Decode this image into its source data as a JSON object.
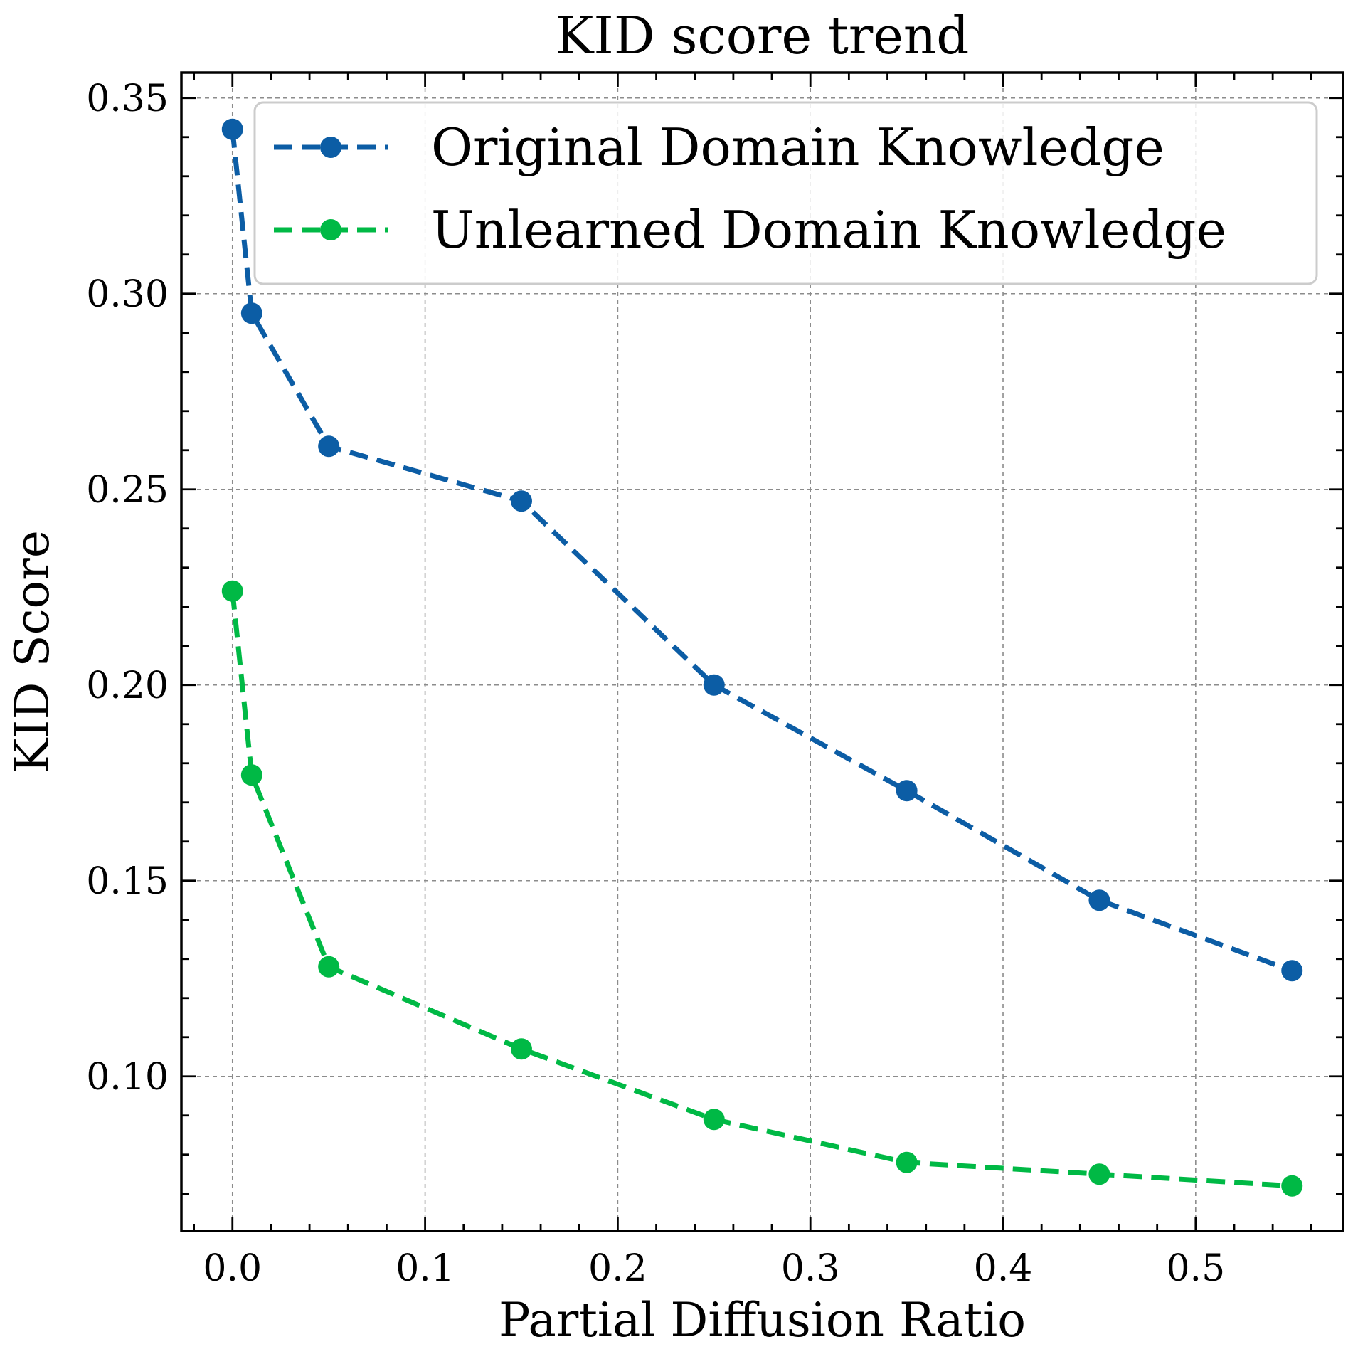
{
  "chart_data": {
    "type": "line",
    "title": "KID score trend",
    "xlabel": "Partial Diffusion Ratio",
    "ylabel": "KID Score",
    "xlim": [
      -0.0265,
      0.5765
    ],
    "ylim": [
      0.0605,
      0.3565
    ],
    "x_ticks": [
      0.0,
      0.1,
      0.2,
      0.3,
      0.4,
      0.5
    ],
    "x_tick_labels": [
      "0.0",
      "0.1",
      "0.2",
      "0.3",
      "0.4",
      "0.5"
    ],
    "y_ticks": [
      0.1,
      0.15,
      0.2,
      0.25,
      0.3,
      0.35
    ],
    "y_tick_labels": [
      "0.10",
      "0.15",
      "0.20",
      "0.25",
      "0.30",
      "0.35"
    ],
    "x_minor_step": 0.02,
    "y_minor_step": 0.01,
    "grid": true,
    "legend_position": "top-right",
    "x": [
      0.0,
      0.01,
      0.05,
      0.15,
      0.25,
      0.35,
      0.45,
      0.55
    ],
    "series": [
      {
        "name": "Original Domain Knowledge",
        "color": "#0C5DA5",
        "line_style": "dashed",
        "marker": "circle",
        "values": [
          0.342,
          0.295,
          0.261,
          0.247,
          0.2,
          0.173,
          0.145,
          0.127
        ]
      },
      {
        "name": "Unlearned Domain Knowledge",
        "color": "#00B945",
        "line_style": "dashed",
        "marker": "circle",
        "values": [
          0.224,
          0.177,
          0.128,
          0.107,
          0.089,
          0.078,
          0.075,
          0.072
        ]
      }
    ]
  }
}
